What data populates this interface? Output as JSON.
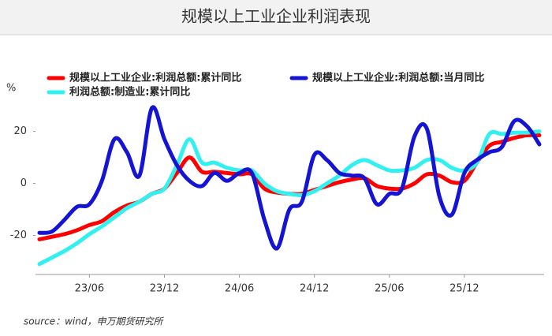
{
  "chart_data": {
    "type": "line",
    "title": "规模以上工业企业利润表现",
    "y_label": "%",
    "source": "source：wind，申万期货研究所",
    "categories": [
      null,
      null,
      null,
      null,
      "23/06",
      null,
      null,
      null,
      null,
      null,
      "23/12",
      null,
      null,
      null,
      null,
      null,
      "24/06",
      null,
      null,
      null,
      null,
      null,
      "24/12",
      null,
      null,
      null,
      null,
      null,
      "25/06",
      null,
      null,
      null,
      null,
      null,
      "25/12",
      null,
      null,
      null,
      null,
      null,
      null
    ],
    "series": [
      {
        "name": "规模以上工业企业:利润总额:累计同比",
        "color": "#ff0000",
        "values": [
          -21.5,
          -20.5,
          -19.5,
          -18,
          -16,
          -14.5,
          -11,
          -8.5,
          -7,
          -4,
          -2,
          4,
          10,
          4.5,
          4.5,
          4,
          3.5,
          3.5,
          -2,
          -3.5,
          -4,
          -4,
          -2.5,
          -1,
          0.5,
          1.5,
          2,
          -1,
          -2,
          -2,
          0,
          3.5,
          3,
          0.5,
          1,
          8,
          14.5,
          16,
          17.5,
          18.5,
          18.5
        ]
      },
      {
        "name": "规模以上工业企业:利润总额:当月同比",
        "color": "#1414d2",
        "values": [
          -19,
          -18.5,
          -14,
          -9,
          -8,
          1,
          17,
          12,
          3,
          29,
          17,
          7,
          1,
          -1,
          4,
          1,
          4,
          4,
          -14,
          -25,
          -10,
          -7,
          11,
          9,
          4,
          3,
          2,
          -8,
          -4,
          -2,
          18,
          21,
          -5,
          -12,
          4,
          9,
          12,
          14,
          24,
          22,
          15
        ]
      },
      {
        "name": "利润总额:制造业:累计同比",
        "color": "#33f0f0",
        "values": [
          -31,
          -28.5,
          -26,
          -23,
          -19.5,
          -16.5,
          -13,
          -9.5,
          -7,
          -4,
          -2,
          7,
          17,
          8,
          8,
          6,
          5,
          5,
          0,
          -3,
          -4,
          -4.5,
          -3,
          0,
          3,
          7,
          9,
          7,
          5,
          5,
          6,
          9,
          9,
          6,
          5,
          8,
          19,
          19,
          19.5,
          19.5,
          20
        ]
      }
    ],
    "ylim": [
      -35,
      32
    ],
    "yticks": [
      -20,
      0,
      20
    ]
  }
}
